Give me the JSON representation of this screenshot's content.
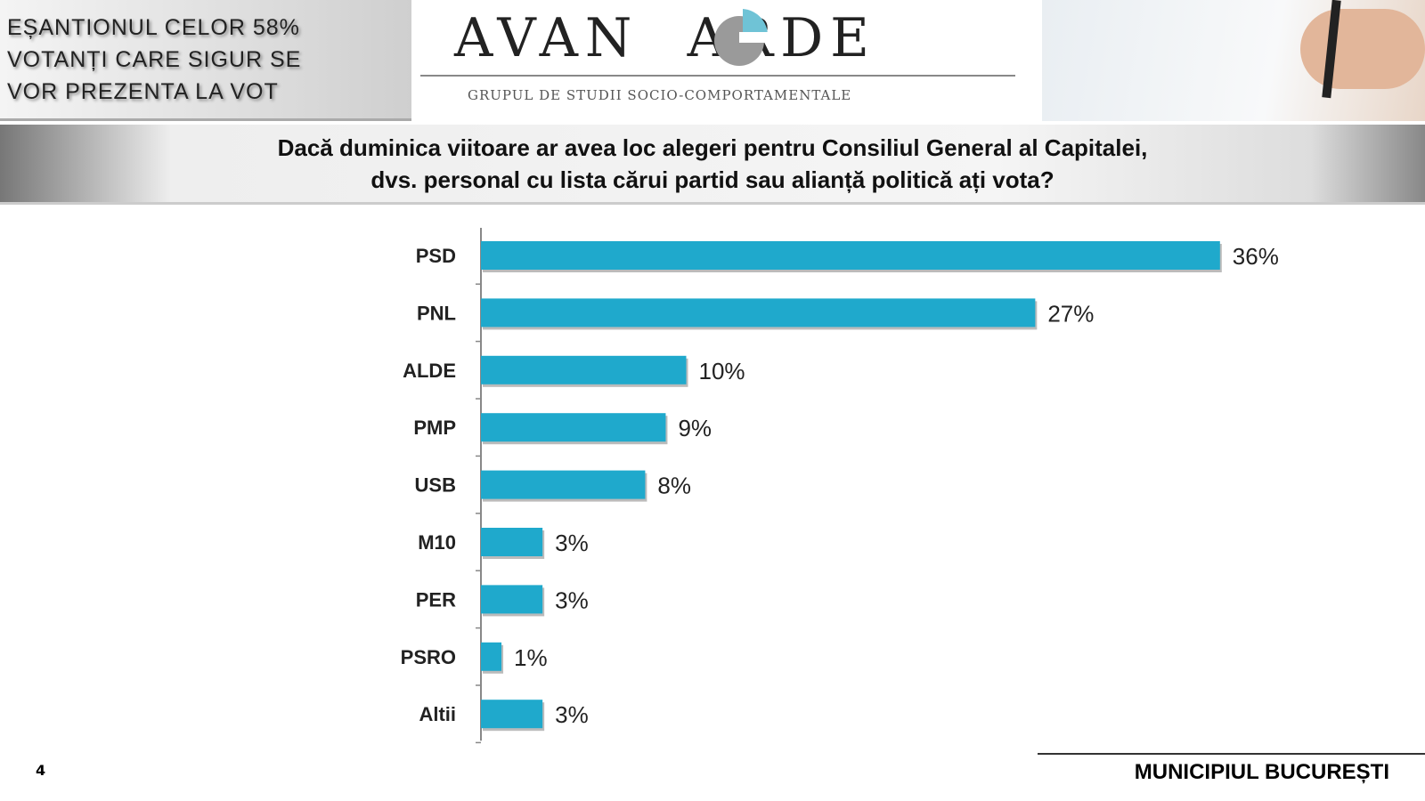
{
  "header": {
    "sample_note": "EȘANTIONUL CELOR 58%\nVOTANȚI CARE SIGUR SE\nVOR PREZENTA  LA VOT",
    "logo_text": "AVANGARDE",
    "logo_subtitle": "GRUPUL DE STUDII SOCIO-COMPORTAMENTALE",
    "question": "Dacă duminica viitoare ar avea loc alegeri pentru  Consiliul General al Capitalei,\ndvs. personal cu lista cărui partid sau alianță politică ați vota?"
  },
  "colors": {
    "bar": "#1fa9cc",
    "logo_accent": "#6fc3d6"
  },
  "chart_data": {
    "type": "bar",
    "orientation": "horizontal",
    "categories": [
      "PSD",
      "PNL",
      "ALDE",
      "PMP",
      "USB",
      "M10",
      "PER",
      "PSRO",
      "Altii"
    ],
    "values": [
      36,
      27,
      10,
      9,
      8,
      3,
      3,
      1,
      3
    ],
    "data_labels": [
      "36%",
      "27%",
      "10%",
      "9%",
      "8%",
      "3%",
      "3%",
      "1%",
      "3%"
    ],
    "unit": "%",
    "grid": false,
    "legend": "none"
  },
  "footer": {
    "page_number": "4",
    "region": "MUNICIPIUL BUCUREȘTI"
  }
}
